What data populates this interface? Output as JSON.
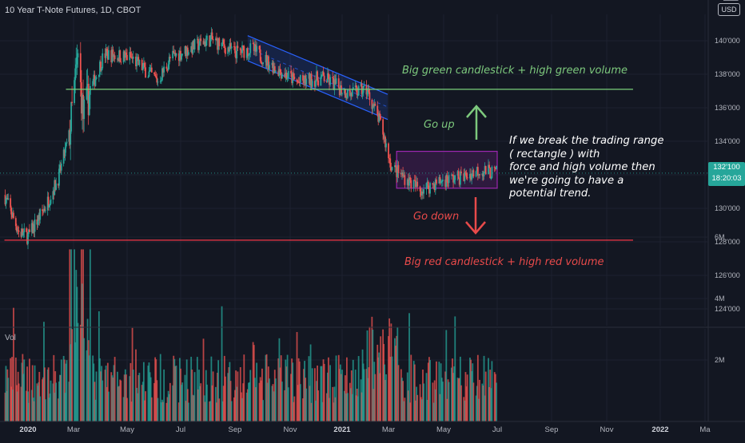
{
  "header": {
    "symbol_title": "10 Year T-Note Futures, 1D, CBOT",
    "currency_button": "USD"
  },
  "volume_pane": {
    "label": "Vol",
    "ticks": [
      "6M",
      "4M",
      "2M"
    ]
  },
  "last_price": {
    "price": "132'100",
    "countdown": "18:20:03"
  },
  "colors": {
    "background": "#131722",
    "up": "#26a69a",
    "down": "#ef5350",
    "channel": "#2962ff",
    "range_box": "#9c27b0",
    "green_line": "#7bd17b",
    "red_line": "#f23645",
    "annotation_white": "#ffffff"
  },
  "annotations": {
    "green_line_text": "Big green candlestick + high green volume",
    "red_line_text": "Big red candlestick + high red volume",
    "go_up": "Go up",
    "go_down": "Go down",
    "note_lines": [
      "If we break the trading range",
      "( rectangle ) with",
      "force and high volume then",
      "we're going to have a",
      "potential trend."
    ]
  },
  "chart_data": {
    "type": "candlestick",
    "title": "10 Year T-Note Futures, 1D, CBOT",
    "y_axis": {
      "ticks": [
        "140'000",
        "138'000",
        "136'000",
        "134'000",
        "132'000",
        "130'000",
        "128'000",
        "126'000",
        "124'000"
      ],
      "range": [
        122.4,
        142.2
      ]
    },
    "x_axis": {
      "ticks": [
        "2020",
        "Mar",
        "May",
        "Jul",
        "Sep",
        "Nov",
        "2021",
        "Mar",
        "May",
        "Jul",
        "Sep",
        "Nov",
        "2022",
        "Ma"
      ],
      "range": [
        "2019-12-01",
        "2022-03-15"
      ]
    },
    "close_path": [
      {
        "date": "2019-12-01",
        "value": 130.8
      },
      {
        "date": "2019-12-20",
        "value": 128.6
      },
      {
        "date": "2020-01-01",
        "value": 128.3
      },
      {
        "date": "2020-01-25",
        "value": 130.2
      },
      {
        "date": "2020-02-10",
        "value": 131.8
      },
      {
        "date": "2020-02-25",
        "value": 134.5
      },
      {
        "date": "2020-03-06",
        "value": 139.0
      },
      {
        "date": "2020-03-12",
        "value": 135.5
      },
      {
        "date": "2020-03-20",
        "value": 137.0
      },
      {
        "date": "2020-04-05",
        "value": 139.2
      },
      {
        "date": "2020-05-05",
        "value": 139.0
      },
      {
        "date": "2020-06-05",
        "value": 137.6
      },
      {
        "date": "2020-06-20",
        "value": 139.0
      },
      {
        "date": "2020-08-04",
        "value": 140.1
      },
      {
        "date": "2020-09-01",
        "value": 139.3
      },
      {
        "date": "2020-09-20",
        "value": 139.5
      },
      {
        "date": "2020-10-15",
        "value": 138.4
      },
      {
        "date": "2020-11-10",
        "value": 137.5
      },
      {
        "date": "2020-12-10",
        "value": 137.8
      },
      {
        "date": "2021-01-10",
        "value": 136.8
      },
      {
        "date": "2021-02-01",
        "value": 137.1
      },
      {
        "date": "2021-02-20",
        "value": 134.9
      },
      {
        "date": "2021-03-05",
        "value": 132.4
      },
      {
        "date": "2021-03-20",
        "value": 131.8
      },
      {
        "date": "2021-04-05",
        "value": 131.1
      },
      {
        "date": "2021-05-01",
        "value": 131.7
      },
      {
        "date": "2021-05-25",
        "value": 131.9
      },
      {
        "date": "2021-06-10",
        "value": 132.3
      },
      {
        "date": "2021-06-30",
        "value": 132.1
      }
    ],
    "volume_range": [
      0,
      6
    ],
    "volume_unit": "M",
    "channel": {
      "start": "2020-09-15",
      "end": "2021-02-28",
      "upper": [
        140.3,
        136.8
      ],
      "lower": [
        138.8,
        135.3
      ]
    },
    "trading_range": {
      "start": "2021-03-10",
      "end": "2021-07-01",
      "top": 133.4,
      "bottom": 131.2
    },
    "levels": [
      {
        "name": "green-breakout-level",
        "value": 137.1,
        "start": "2020-02-20",
        "end": "2021-12-01"
      },
      {
        "name": "red-breakdown-level",
        "value": 128.1,
        "start": "2019-12-01",
        "end": "2021-12-01"
      }
    ]
  }
}
